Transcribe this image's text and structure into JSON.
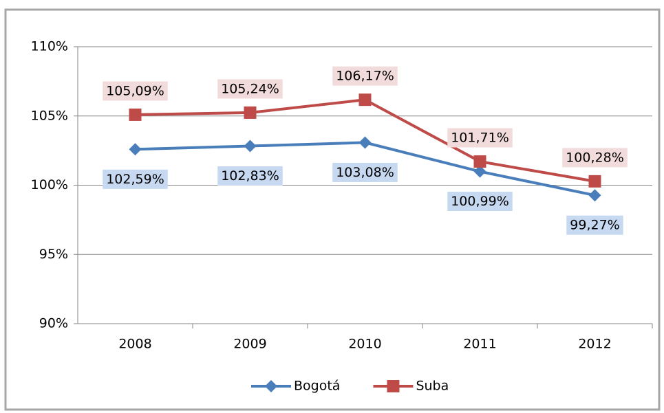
{
  "chart_data": {
    "type": "line",
    "categories": [
      "2008",
      "2009",
      "2010",
      "2011",
      "2012"
    ],
    "series": [
      {
        "name": "Bogotá",
        "color": "#4a7ebb",
        "marker": "diamond",
        "label_color": "#1f497d",
        "label_background": "#c6d9f1",
        "values": [
          102.59,
          102.83,
          103.08,
          100.99,
          99.27
        ],
        "value_labels": [
          "102,59%",
          "102,83%",
          "103,08%",
          "100,99%",
          "99,27%"
        ]
      },
      {
        "name": "Suba",
        "color": "#be4b48",
        "marker": "square",
        "label_color": "#000000",
        "label_background": "#f2dcdb",
        "values": [
          105.09,
          105.24,
          106.17,
          101.71,
          100.28
        ],
        "value_labels": [
          "105,09%",
          "105,24%",
          "106,17%",
          "101,71%",
          "100,28%"
        ]
      }
    ],
    "ylim": [
      90,
      110
    ],
    "yticks": [
      {
        "value": 90,
        "label": "90%"
      },
      {
        "value": 95,
        "label": "95%"
      },
      {
        "value": 100,
        "label": "100%"
      },
      {
        "value": 105,
        "label": "105%"
      },
      {
        "value": 110,
        "label": "110%"
      }
    ],
    "grid": true,
    "legend": "bottom"
  }
}
